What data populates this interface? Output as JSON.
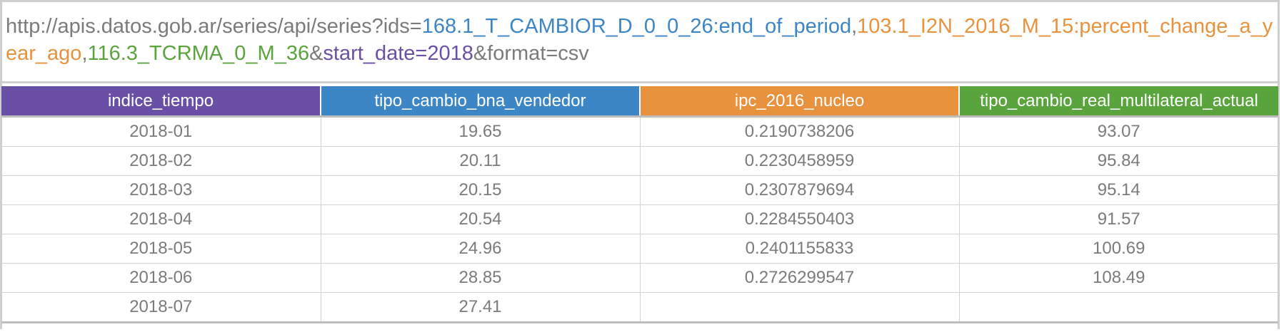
{
  "url": {
    "segments": [
      {
        "text": "http://apis.datos.gob.ar/series/api/series?ids=",
        "color": "#7b7b7b"
      },
      {
        "text": "168.1_T_CAMBIOR_D_0_0_26:end_of_period",
        "color": "#3d86c6"
      },
      {
        "text": ",",
        "color": "#7b7b7b"
      },
      {
        "text": "103.1_I2N_2016_M_15:percent_change_a_year_ago",
        "color": "#e8923e"
      },
      {
        "text": ",",
        "color": "#7b7b7b"
      },
      {
        "text": "116.3_TCRMA_0_M_36",
        "color": "#5aa43d"
      },
      {
        "text": "&",
        "color": "#7b7b7b"
      },
      {
        "text": "start_date=2018",
        "color": "#6a4fa6"
      },
      {
        "text": "&format=csv",
        "color": "#7b7b7b"
      }
    ]
  },
  "table": {
    "headers": [
      {
        "label": "indice_tiempo",
        "color": "#6a4fa6"
      },
      {
        "label": "tipo_cambio_bna_vendedor",
        "color": "#3d86c6"
      },
      {
        "label": "ipc_2016_nucleo",
        "color": "#e8923e"
      },
      {
        "label": "tipo_cambio_real_multilateral_actual",
        "color": "#5aa43d"
      }
    ],
    "rows": [
      [
        "2018-01",
        "19.65",
        "0.2190738206",
        "93.07"
      ],
      [
        "2018-02",
        "20.11",
        "0.2230458959",
        "95.84"
      ],
      [
        "2018-03",
        "20.15",
        "0.2307879694",
        "95.14"
      ],
      [
        "2018-04",
        "20.54",
        "0.2284550403",
        "91.57"
      ],
      [
        "2018-05",
        "24.96",
        "0.2401155833",
        "100.69"
      ],
      [
        "2018-06",
        "28.85",
        "0.2726299547",
        "108.49"
      ],
      [
        "2018-07",
        "27.41",
        "",
        ""
      ]
    ]
  }
}
